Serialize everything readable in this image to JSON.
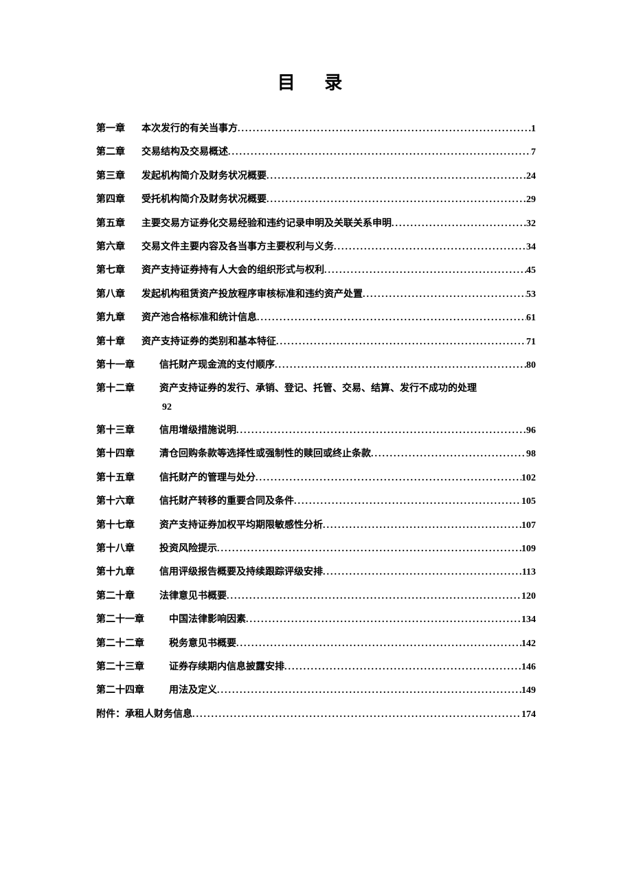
{
  "title": "目  录",
  "entries": [
    {
      "chapter": "第一章",
      "gap": "gap1",
      "name": "本次发行的有关当事方",
      "page": "1"
    },
    {
      "chapter": "第二章",
      "gap": "gap1",
      "name": "交易结构及交易概述",
      "page": "7"
    },
    {
      "chapter": "第三章",
      "gap": "gap1",
      "name": "发起机构简介及财务状况概要",
      "page": "24"
    },
    {
      "chapter": "第四章",
      "gap": "gap1",
      "name": "受托机构简介及财务状况概要",
      "page": "29"
    },
    {
      "chapter": "第五章",
      "gap": "gap1",
      "name": "主要交易方证券化交易经验和违约记录申明及关联关系申明",
      "page": "32"
    },
    {
      "chapter": "第六章",
      "gap": "gap1",
      "name": "交易文件主要内容及各当事方主要权利与义务",
      "page": "34"
    },
    {
      "chapter": "第七章",
      "gap": "gap1",
      "name": "资产支持证券持有人大会的组织形式与权利",
      "page": "45"
    },
    {
      "chapter": "第八章",
      "gap": "gap1",
      "name": "发起机构租赁资产投放程序审核标准和违约资产处置",
      "page": "53"
    },
    {
      "chapter": "第九章",
      "gap": "gap1",
      "name": "资产池合格标准和统计信息",
      "page": "61"
    },
    {
      "chapter": "第十章",
      "gap": "gap1",
      "name": "资产支持证券的类别和基本特征",
      "page": "71"
    },
    {
      "chapter": "第十一章",
      "gap": "gap2",
      "name": "信托财产现金流的支付顺序",
      "page": "80"
    },
    {
      "chapter": "第十二章",
      "gap": "gap2",
      "name": "资产支持证券的发行、承销、登记、托管、交易、结算、发行不成功的处理",
      "page": null,
      "continuation": "92"
    },
    {
      "chapter": "第十三章",
      "gap": "gap2",
      "name": "信用增级措施说明",
      "page": "96"
    },
    {
      "chapter": "第十四章",
      "gap": "gap2",
      "name": "清仓回购条款等选择性或强制性的赎回或终止条款",
      "page": "98"
    },
    {
      "chapter": "第十五章",
      "gap": "gap2",
      "name": "信托财产的管理与处分",
      "page": "102"
    },
    {
      "chapter": "第十六章",
      "gap": "gap2",
      "name": "信托财产转移的重要合同及条件",
      "page": "105"
    },
    {
      "chapter": "第十七章",
      "gap": "gap2",
      "name": "资产支持证券加权平均期限敏感性分析",
      "page": "107"
    },
    {
      "chapter": "第十八章",
      "gap": "gap2",
      "name": "投资风险提示",
      "page": "109"
    },
    {
      "chapter": "第十九章",
      "gap": "gap2",
      "name": "信用评级报告概要及持续跟踪评级安排",
      "page": "113"
    },
    {
      "chapter": "第二十章",
      "gap": "gap2",
      "name": "法律意见书概要",
      "page": "120"
    },
    {
      "chapter": "第二十一章",
      "gap": "gap2",
      "name": "中国法律影响因素",
      "page": "134"
    },
    {
      "chapter": "第二十二章",
      "gap": "gap2",
      "name": "税务意见书概要",
      "page": "142"
    },
    {
      "chapter": "第二十三章",
      "gap": "gap2",
      "name": "证券存续期内信息披露安排",
      "page": "146"
    },
    {
      "chapter": "第二十四章",
      "gap": "gap2",
      "name": "用法及定义",
      "page": "149"
    }
  ],
  "appendix": {
    "label": "附件：承租人财务信息",
    "page": "174"
  }
}
